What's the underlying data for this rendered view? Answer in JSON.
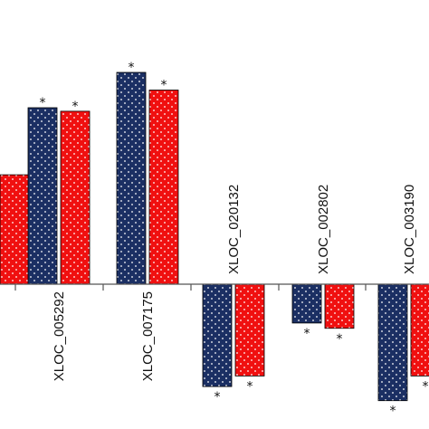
{
  "chart_data": {
    "type": "bar",
    "categories": [
      "",
      "XLOC_005292",
      "XLOC_007175",
      "XLOC_020132",
      "XLOC_002802",
      "XLOC_003190"
    ],
    "series": [
      {
        "color": "#1b2f63",
        "pattern": "white-dots",
        "values": [
          null,
          1.0,
          1.2,
          -0.58,
          -0.22,
          -0.66
        ],
        "significance": [
          "",
          "*",
          "*",
          "*",
          "*",
          "*"
        ]
      },
      {
        "color": "#f01010",
        "pattern": "white-dots",
        "values": [
          0.62,
          0.98,
          1.1,
          -0.52,
          -0.25,
          -0.52
        ],
        "significance": [
          "",
          "*",
          "*",
          "*",
          "*",
          "*"
        ]
      }
    ],
    "title": "",
    "xlabel": "",
    "ylabel": "",
    "ylim": [
      -0.75,
      1.6
    ],
    "grid": false,
    "legend": "none"
  }
}
